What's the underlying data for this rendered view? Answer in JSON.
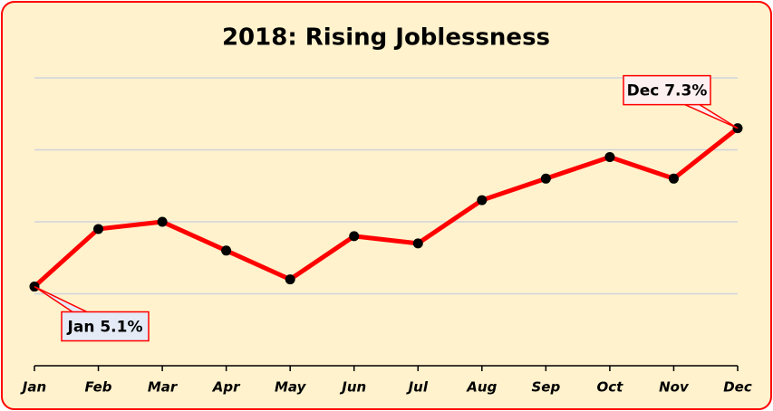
{
  "chart_data": {
    "type": "line",
    "title": "2018: Rising Joblessness",
    "categories": [
      "Jan",
      "Feb",
      "Mar",
      "Apr",
      "May",
      "Jun",
      "Jul",
      "Aug",
      "Sep",
      "Oct",
      "Nov",
      "Dec"
    ],
    "series": [
      {
        "color": "#ff0000",
        "values": [
          5.1,
          5.9,
          6.0,
          5.6,
          5.2,
          5.8,
          5.7,
          6.3,
          6.6,
          6.9,
          6.6,
          7.3
        ],
        "value_labels": [
          "Jan 5.1%",
          null,
          null,
          null,
          null,
          null,
          null,
          null,
          null,
          null,
          null,
          "Dec 7.3%"
        ]
      }
    ],
    "ylim": [
      4,
      8
    ],
    "yticks": [
      5,
      6,
      7,
      8
    ],
    "grid": true
  }
}
